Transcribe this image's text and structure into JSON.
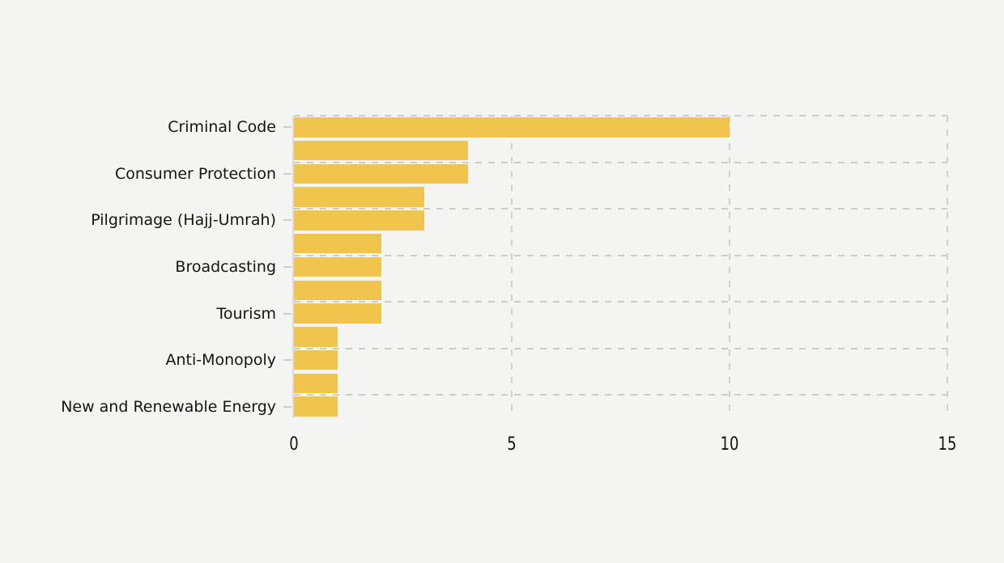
{
  "chart_data": {
    "type": "bar",
    "orientation": "horizontal",
    "title": "",
    "xlabel": "",
    "ylabel": "",
    "xlim": [
      0,
      15
    ],
    "xticks": [
      0,
      5,
      10,
      15
    ],
    "grid": true,
    "legend": false,
    "colors": {
      "bar": "#efc54d",
      "background": "#f4f4f2",
      "gridline": "#cbcbcb",
      "axis_line": "#dcdcdc",
      "text": "#141414"
    },
    "note": "13 horizontal bars; category tick labels shown on every other bar",
    "items": [
      {
        "label": "Criminal Code",
        "value": 10
      },
      {
        "label": "",
        "value": 4
      },
      {
        "label": "Consumer Protection",
        "value": 4
      },
      {
        "label": "",
        "value": 3
      },
      {
        "label": "Pilgrimage (Hajj-Umrah)",
        "value": 3
      },
      {
        "label": "",
        "value": 2
      },
      {
        "label": "Broadcasting",
        "value": 2
      },
      {
        "label": "",
        "value": 2
      },
      {
        "label": "Tourism",
        "value": 2
      },
      {
        "label": "",
        "value": 1
      },
      {
        "label": "Anti-Monopoly",
        "value": 1
      },
      {
        "label": "",
        "value": 1
      },
      {
        "label": "New and Renewable Energy",
        "value": 1
      }
    ]
  }
}
